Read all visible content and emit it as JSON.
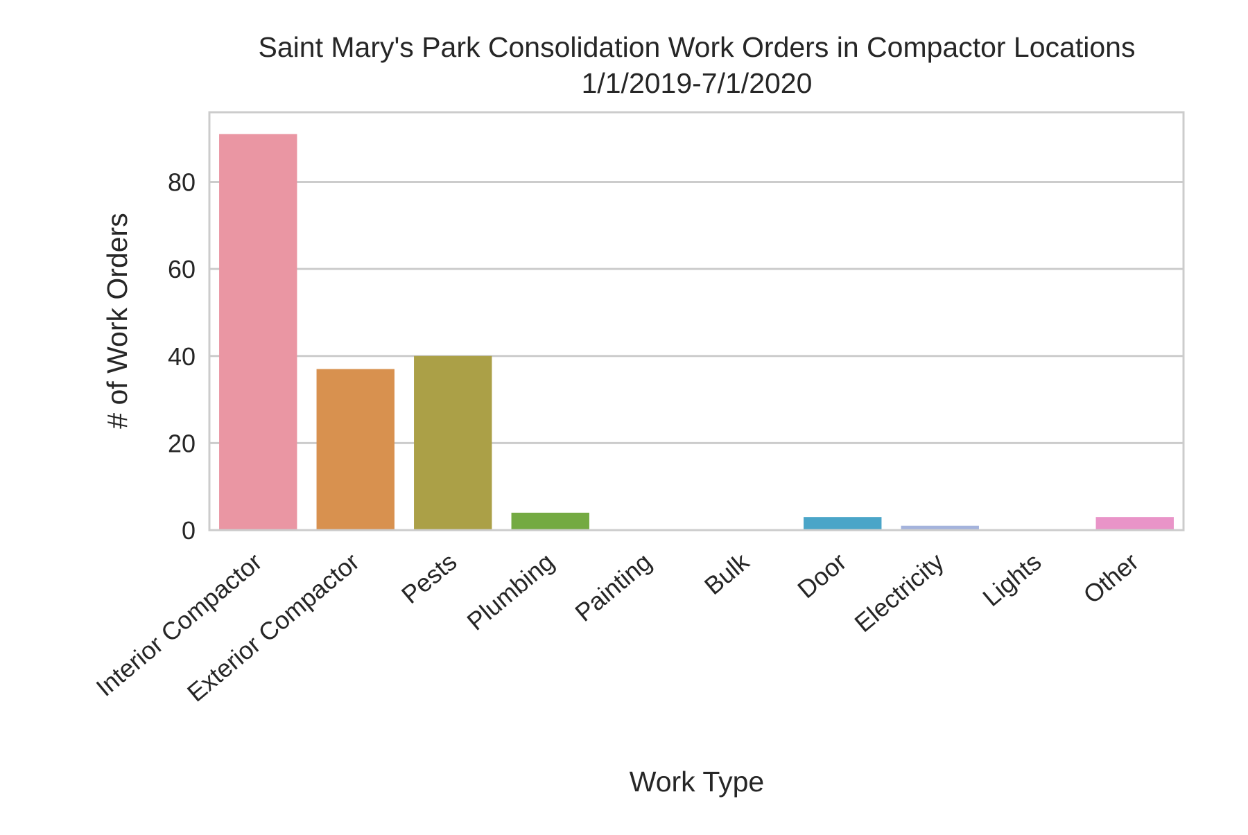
{
  "chart_data": {
    "type": "bar",
    "title": "Saint Mary's Park Consolidation Work Orders in Compactor Locations",
    "subtitle": "1/1/2019-7/1/2020",
    "xlabel": "Work Type",
    "ylabel": "# of Work Orders",
    "categories": [
      "Interior Compactor",
      "Exterior Compactor",
      "Pests",
      "Plumbing",
      "Painting",
      "Bulk",
      "Door",
      "Electricity",
      "Lights",
      "Other"
    ],
    "values": [
      91,
      37,
      40,
      4,
      0,
      0,
      3,
      1,
      0,
      3
    ],
    "colors": [
      "#ea96a3",
      "#d8914f",
      "#aba047",
      "#74aa42",
      "#4dae7f",
      "#52aa9e",
      "#4aa5c8",
      "#a4b3dc",
      "#d68fe6",
      "#e994c8"
    ],
    "ylim": [
      0,
      96
    ],
    "yticks": [
      0,
      20,
      40,
      60,
      80
    ],
    "grid": true,
    "axes_color": "#cccccc",
    "grid_color": "#cccccc"
  }
}
